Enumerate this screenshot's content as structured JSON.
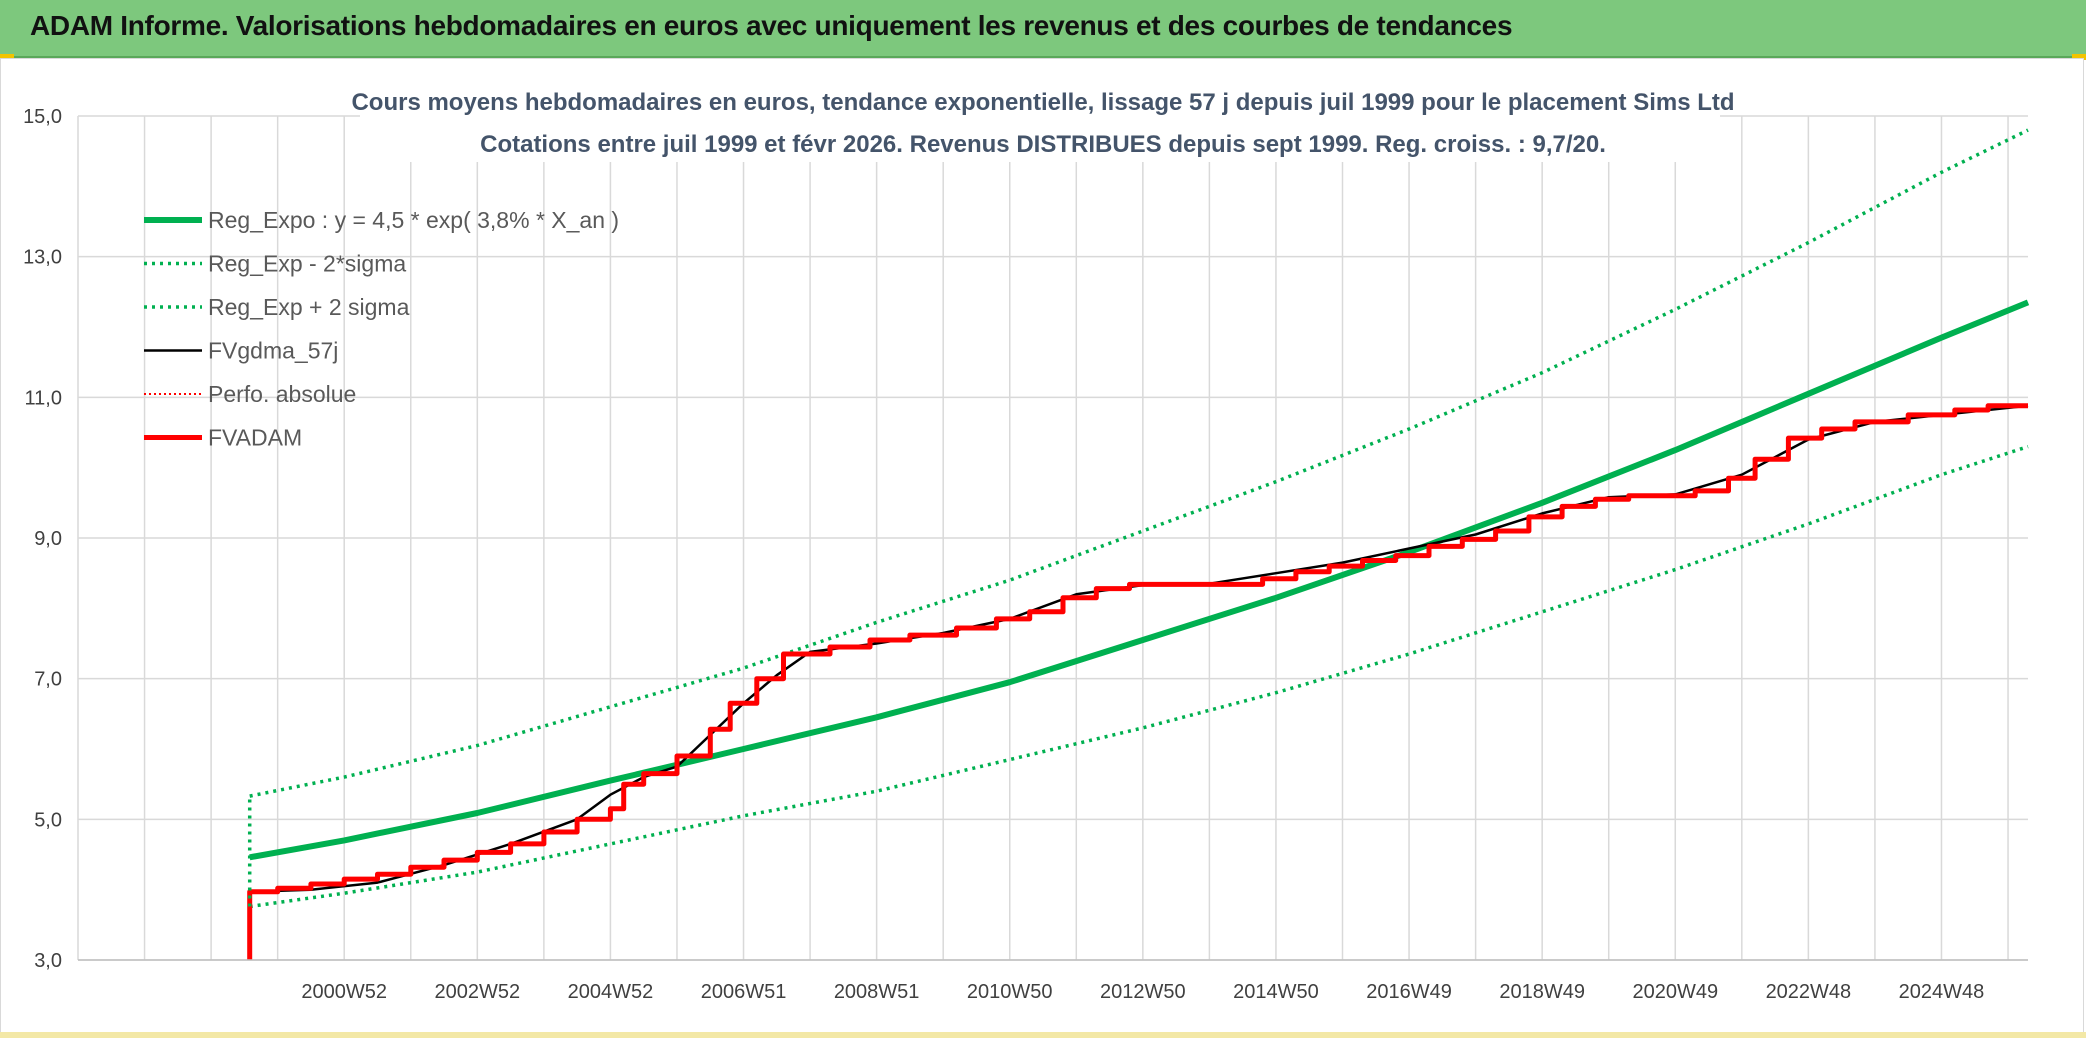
{
  "header": {
    "title": "ADAM Informe. Valorisations hebdomadaires en euros avec uniquement les revenus et des courbes de tendances"
  },
  "colors": {
    "header_bg": "#7dc87d",
    "reg_green": "#00b050",
    "fvadam_red": "#ff0000",
    "fvgdma_black": "#000000",
    "grid": "#d9d9d9"
  },
  "chart_data": {
    "type": "line",
    "title": "Cours moyens hebdomadaires en euros, tendance exponentielle, lissage 57 j depuis juil 1999 pour le placement Sims Ltd",
    "subtitle": "Cotations entre juil 1999 et févr 2026. Revenus DISTRIBUES depuis sept 1999. Reg. croiss. : 9,7/20.",
    "xlabel": "",
    "ylabel": "",
    "ylim": [
      3,
      15
    ],
    "y_ticks": [
      "3,0",
      "5,0",
      "7,0",
      "9,0",
      "11,0",
      "13,0",
      "15,0"
    ],
    "x_range": [
      1997,
      2026.3
    ],
    "x_tick_labels": [
      {
        "label": "2000W52",
        "year": 2001.0
      },
      {
        "label": "2002W52",
        "year": 2003.0
      },
      {
        "label": "2004W52",
        "year": 2005.0
      },
      {
        "label": "2006W51",
        "year": 2007.0
      },
      {
        "label": "2008W51",
        "year": 2009.0
      },
      {
        "label": "2010W50",
        "year": 2011.0
      },
      {
        "label": "2012W50",
        "year": 2013.0
      },
      {
        "label": "2014W50",
        "year": 2015.0
      },
      {
        "label": "2016W49",
        "year": 2017.0
      },
      {
        "label": "2018W49",
        "year": 2019.0
      },
      {
        "label": "2020W49",
        "year": 2021.0
      },
      {
        "label": "2022W48",
        "year": 2023.0
      },
      {
        "label": "2024W48",
        "year": 2025.0
      }
    ],
    "x_gridlines": [
      1997,
      1998,
      1999,
      2000,
      2001,
      2002,
      2003,
      2004,
      2005,
      2006,
      2007,
      2008,
      2009,
      2010,
      2011,
      2012,
      2013,
      2014,
      2015,
      2016,
      2017,
      2018,
      2019,
      2020,
      2021,
      2022,
      2023,
      2024,
      2025,
      2026
    ],
    "grid": true,
    "legend_position": "top-left",
    "legend": [
      {
        "label": "Reg_Expo : y = 4,5 * exp( 3,8% *  X_an )",
        "style": "green-thick"
      },
      {
        "label": "Reg_Exp - 2*sigma",
        "style": "green-dotted"
      },
      {
        "label": "Reg_Exp + 2 sigma",
        "style": "green-dotted"
      },
      {
        "label": "FVgdma_57j",
        "style": "black"
      },
      {
        "label": "Perfo. absolue",
        "style": "red-dotted"
      },
      {
        "label": "FVADAM",
        "style": "red-thick"
      }
    ],
    "series": [
      {
        "name": "Reg_Expo : y = 4,5 * exp( 3,8% *  X_an )",
        "points": [
          [
            1999.58,
            4.46
          ],
          [
            2001,
            4.7
          ],
          [
            2003,
            5.09
          ],
          [
            2005,
            5.55
          ],
          [
            2007,
            6.0
          ],
          [
            2009,
            6.45
          ],
          [
            2011,
            6.95
          ],
          [
            2013,
            7.55
          ],
          [
            2015,
            8.15
          ],
          [
            2017,
            8.8
          ],
          [
            2019,
            9.5
          ],
          [
            2021,
            10.25
          ],
          [
            2023,
            11.05
          ],
          [
            2025,
            11.85
          ],
          [
            2026.3,
            12.35
          ]
        ]
      },
      {
        "name": "Reg_Exp - 2*sigma",
        "points": [
          [
            1999.58,
            3.76
          ],
          [
            2001,
            3.95
          ],
          [
            2003,
            4.25
          ],
          [
            2005,
            4.65
          ],
          [
            2007,
            5.05
          ],
          [
            2009,
            5.4
          ],
          [
            2011,
            5.85
          ],
          [
            2013,
            6.3
          ],
          [
            2015,
            6.8
          ],
          [
            2017,
            7.35
          ],
          [
            2019,
            7.95
          ],
          [
            2021,
            8.55
          ],
          [
            2023,
            9.2
          ],
          [
            2025,
            9.9
          ],
          [
            2026.3,
            10.3
          ]
        ]
      },
      {
        "name": "Reg_Exp + 2 sigma",
        "points": [
          [
            1999.58,
            5.33
          ],
          [
            2001,
            5.6
          ],
          [
            2003,
            6.05
          ],
          [
            2005,
            6.6
          ],
          [
            2007,
            7.15
          ],
          [
            2009,
            7.8
          ],
          [
            2011,
            8.4
          ],
          [
            2013,
            9.1
          ],
          [
            2015,
            9.8
          ],
          [
            2017,
            10.55
          ],
          [
            2019,
            11.35
          ],
          [
            2021,
            12.25
          ],
          [
            2023,
            13.2
          ],
          [
            2025,
            14.2
          ],
          [
            2026.3,
            14.8
          ]
        ]
      },
      {
        "name": "FVgdma_57j",
        "points": [
          [
            1999.58,
            3.97
          ],
          [
            2000.5,
            4.0
          ],
          [
            2001.5,
            4.1
          ],
          [
            2002.5,
            4.35
          ],
          [
            2003.5,
            4.65
          ],
          [
            2004.5,
            5.0
          ],
          [
            2005,
            5.35
          ],
          [
            2005.5,
            5.6
          ],
          [
            2006,
            5.75
          ],
          [
            2006.5,
            6.2
          ],
          [
            2007,
            6.65
          ],
          [
            2007.5,
            7.05
          ],
          [
            2008,
            7.38
          ],
          [
            2009,
            7.5
          ],
          [
            2010,
            7.65
          ],
          [
            2011,
            7.85
          ],
          [
            2012,
            8.2
          ],
          [
            2013,
            8.33
          ],
          [
            2014,
            8.35
          ],
          [
            2015,
            8.5
          ],
          [
            2016,
            8.65
          ],
          [
            2017,
            8.85
          ],
          [
            2018,
            9.05
          ],
          [
            2019,
            9.35
          ],
          [
            2020,
            9.58
          ],
          [
            2021,
            9.62
          ],
          [
            2022,
            9.9
          ],
          [
            2023,
            10.4
          ],
          [
            2024,
            10.65
          ],
          [
            2025,
            10.75
          ],
          [
            2026.3,
            10.88
          ]
        ]
      },
      {
        "name": "FVADAM",
        "points": [
          [
            1999.58,
            3.0
          ],
          [
            1999.58,
            3.97
          ],
          [
            2000.0,
            3.97
          ],
          [
            2000.0,
            4.02
          ],
          [
            2000.5,
            4.02
          ],
          [
            2000.5,
            4.08
          ],
          [
            2001.0,
            4.08
          ],
          [
            2001.0,
            4.15
          ],
          [
            2001.5,
            4.15
          ],
          [
            2001.5,
            4.22
          ],
          [
            2002.0,
            4.22
          ],
          [
            2002.0,
            4.32
          ],
          [
            2002.5,
            4.32
          ],
          [
            2002.5,
            4.42
          ],
          [
            2003.0,
            4.42
          ],
          [
            2003.0,
            4.53
          ],
          [
            2003.5,
            4.53
          ],
          [
            2003.5,
            4.65
          ],
          [
            2004.0,
            4.65
          ],
          [
            2004.0,
            4.82
          ],
          [
            2004.5,
            4.82
          ],
          [
            2004.5,
            5.0
          ],
          [
            2005.0,
            5.0
          ],
          [
            2005.0,
            5.15
          ],
          [
            2005.2,
            5.15
          ],
          [
            2005.2,
            5.5
          ],
          [
            2005.5,
            5.5
          ],
          [
            2005.5,
            5.65
          ],
          [
            2006.0,
            5.65
          ],
          [
            2006.0,
            5.9
          ],
          [
            2006.5,
            5.9
          ],
          [
            2006.5,
            6.28
          ],
          [
            2006.8,
            6.28
          ],
          [
            2006.8,
            6.65
          ],
          [
            2007.2,
            6.65
          ],
          [
            2007.2,
            7.0
          ],
          [
            2007.6,
            7.0
          ],
          [
            2007.6,
            7.35
          ],
          [
            2008.3,
            7.35
          ],
          [
            2008.3,
            7.45
          ],
          [
            2008.9,
            7.45
          ],
          [
            2008.9,
            7.55
          ],
          [
            2009.5,
            7.55
          ],
          [
            2009.5,
            7.62
          ],
          [
            2010.2,
            7.62
          ],
          [
            2010.2,
            7.72
          ],
          [
            2010.8,
            7.72
          ],
          [
            2010.8,
            7.85
          ],
          [
            2011.3,
            7.85
          ],
          [
            2011.3,
            7.95
          ],
          [
            2011.8,
            7.95
          ],
          [
            2011.8,
            8.15
          ],
          [
            2012.3,
            8.15
          ],
          [
            2012.3,
            8.28
          ],
          [
            2012.8,
            8.28
          ],
          [
            2012.8,
            8.34
          ],
          [
            2014.8,
            8.34
          ],
          [
            2014.8,
            8.42
          ],
          [
            2015.3,
            8.42
          ],
          [
            2015.3,
            8.52
          ],
          [
            2015.8,
            8.52
          ],
          [
            2015.8,
            8.6
          ],
          [
            2016.3,
            8.6
          ],
          [
            2016.3,
            8.68
          ],
          [
            2016.8,
            8.68
          ],
          [
            2016.8,
            8.75
          ],
          [
            2017.3,
            8.75
          ],
          [
            2017.3,
            8.88
          ],
          [
            2017.8,
            8.88
          ],
          [
            2017.8,
            8.98
          ],
          [
            2018.3,
            8.98
          ],
          [
            2018.3,
            9.1
          ],
          [
            2018.8,
            9.1
          ],
          [
            2018.8,
            9.3
          ],
          [
            2019.3,
            9.3
          ],
          [
            2019.3,
            9.45
          ],
          [
            2019.8,
            9.45
          ],
          [
            2019.8,
            9.55
          ],
          [
            2020.3,
            9.55
          ],
          [
            2020.3,
            9.6
          ],
          [
            2021.3,
            9.6
          ],
          [
            2021.3,
            9.67
          ],
          [
            2021.8,
            9.67
          ],
          [
            2021.8,
            9.85
          ],
          [
            2022.2,
            9.85
          ],
          [
            2022.2,
            10.12
          ],
          [
            2022.7,
            10.12
          ],
          [
            2022.7,
            10.42
          ],
          [
            2023.2,
            10.42
          ],
          [
            2023.2,
            10.55
          ],
          [
            2023.7,
            10.55
          ],
          [
            2023.7,
            10.65
          ],
          [
            2024.5,
            10.65
          ],
          [
            2024.5,
            10.75
          ],
          [
            2025.2,
            10.75
          ],
          [
            2025.2,
            10.82
          ],
          [
            2025.7,
            10.82
          ],
          [
            2025.7,
            10.88
          ],
          [
            2026.3,
            10.88
          ]
        ]
      }
    ]
  }
}
